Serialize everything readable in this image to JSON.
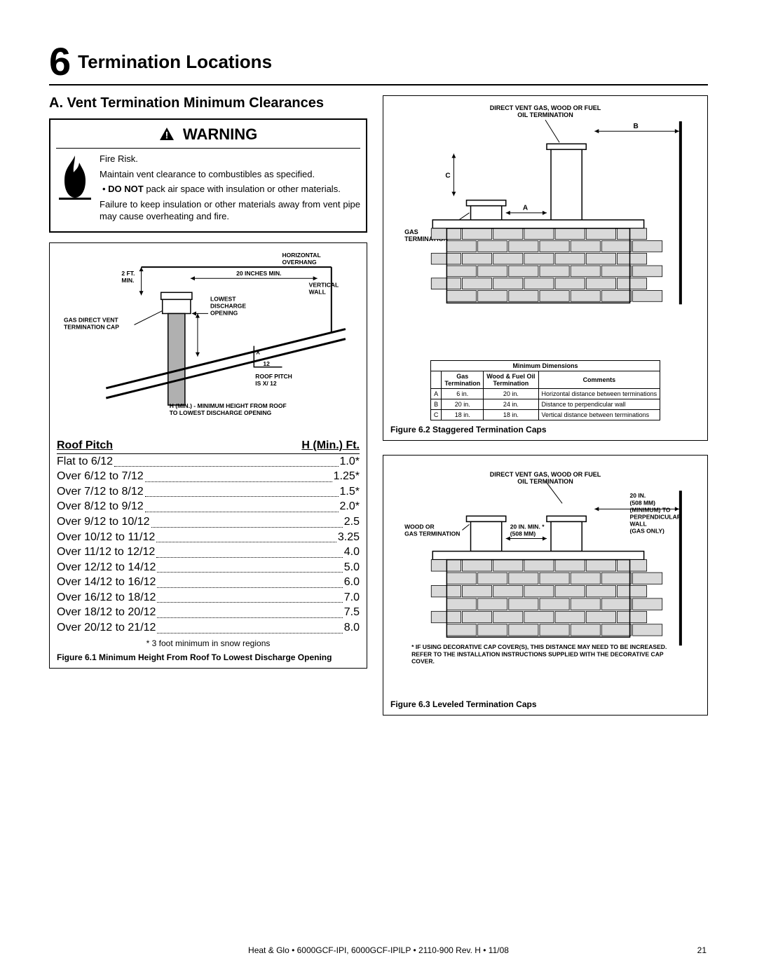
{
  "chapter": {
    "number": "6",
    "title": "Termination Locations"
  },
  "subsection": "A.  Vent Termination Minimum Clearances",
  "warning": {
    "title": "WARNING",
    "lines": [
      "Fire Risk.",
      "Maintain vent clearance to combustibles as specified.",
      "bullet:DO NOT pack air space with insulation or other materials.",
      "Failure to keep insulation or other materials away from vent pipe may cause overheating and fire."
    ],
    "do_not": "DO NOT"
  },
  "fig61": {
    "caption": "Figure 6.1  Minimum Height From Roof To Lowest Discharge Opening",
    "labels": {
      "horiz_overhang": "HORIZONTAL\nOVERHANG",
      "two_ft": "2 FT.\nMIN.",
      "twenty_in": "20 INCHES MIN.",
      "vertical_wall": "VERTICAL\nWALL",
      "lowest": "LOWEST\nDISCHARGE\nOPENING",
      "gas_vent": "GAS DIRECT VENT\nTERMINATION CAP",
      "x12": "X\n12",
      "roof_pitch": "ROOF PITCH\nIS  X/ 12",
      "h_min": "H (MIN.) - MINIMUM HEIGHT FROM ROOF\nTO LOWEST DISCHARGE OPENING"
    },
    "roof_header": {
      "left": "Roof Pitch",
      "right": "H (Min.) Ft."
    },
    "rows": [
      {
        "pitch": "Flat to 6/12",
        "h": "1.0*"
      },
      {
        "pitch": "Over 6/12 to 7/12",
        "h": "1.25*"
      },
      {
        "pitch": "Over 7/12 to 8/12",
        "h": "1.5*"
      },
      {
        "pitch": "Over 8/12 to 9/12",
        "h": "2.0*"
      },
      {
        "pitch": "Over 9/12 to 10/12",
        "h": "2.5"
      },
      {
        "pitch": "Over 10/12 to 11/12",
        "h": "3.25"
      },
      {
        "pitch": "Over 11/12 to 12/12",
        "h": "4.0"
      },
      {
        "pitch": "Over 12/12 to 14/12",
        "h": "5.0"
      },
      {
        "pitch": "Over 14/12 to 16/12",
        "h": "6.0"
      },
      {
        "pitch": "Over 16/12 to 18/12",
        "h": "7.0"
      },
      {
        "pitch": "Over 18/12 to 20/12",
        "h": "7.5"
      },
      {
        "pitch": "Over 20/12 to 21/12",
        "h": "8.0"
      }
    ],
    "note": "* 3 foot minimum in snow regions"
  },
  "fig62": {
    "caption": "Figure 6.2  Staggered Termination Caps",
    "title": "DIRECT VENT GAS, WOOD OR FUEL\nOIL TERMINATION",
    "gas_term": "GAS\nTERMINATION",
    "table": {
      "title": "Minimum Dimensions",
      "cols": [
        "",
        "Gas\nTermination",
        "Wood & Fuel Oil\nTermination",
        "Comments"
      ],
      "rows": [
        [
          "A",
          "6 in.",
          "20 in.",
          "Horizontal distance between terminations"
        ],
        [
          "B",
          "20 in.",
          "24 in.",
          "Distance to perpendicular wall"
        ],
        [
          "C",
          "18 in.",
          "18 in.",
          "Vertical distance between terminations"
        ]
      ]
    }
  },
  "fig63": {
    "caption": "Figure 6.3  Leveled Termination Caps",
    "title": "DIRECT VENT GAS, WOOD OR FUEL\nOIL TERMINATION",
    "wood_gas": "WOOD OR\nGAS TERMINATION",
    "twenty_min": "20 IN. MIN. *\n(508 MM)",
    "twenty_in": "20 IN.\n(508 MM)\n(MINIMUM) TO\nPERPENDICULAR\nWALL\n(GAS ONLY)",
    "footnote": "*  IF USING DECORATIVE CAP COVER(S), THIS DISTANCE MAY NEED TO BE INCREASED. REFER TO THE INSTALLATION INSTRUCTIONS SUPPLIED WITH THE DECORATIVE CAP COVER."
  },
  "footer": "Heat & Glo  •  6000GCF-IPI, 6000GCF-IPILP  •  2110-900  Rev. H  •  11/08",
  "page": "21"
}
